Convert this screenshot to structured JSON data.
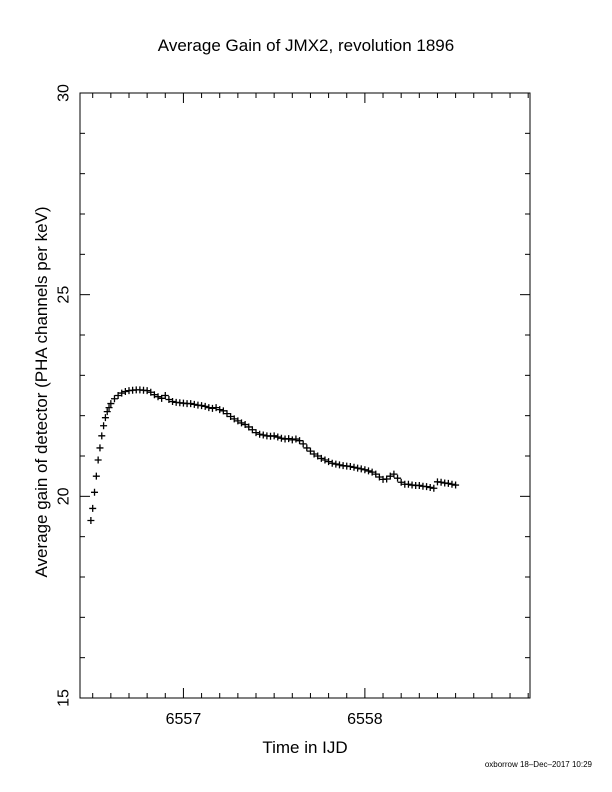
{
  "chart_data": {
    "type": "scatter",
    "title": "Average Gain of JMX2, revolution 1896",
    "xlabel": "Time in IJD",
    "ylabel": "Average gain of detector (PHA channels per keV)",
    "xlim": [
      6556.43,
      6558.91
    ],
    "ylim": [
      15,
      30
    ],
    "xticks": [
      6557,
      6558
    ],
    "yticks": [
      15,
      20,
      25,
      30
    ],
    "xminor_step": 0.1,
    "yminor_step": 1,
    "marker": "plus",
    "marker_color": "#000000",
    "grid": false,
    "series": [
      {
        "points": [
          [
            6556.49,
            19.4
          ],
          [
            6556.5,
            19.7
          ],
          [
            6556.51,
            20.1
          ],
          [
            6556.52,
            20.5
          ],
          [
            6556.53,
            20.9
          ],
          [
            6556.54,
            21.2
          ],
          [
            6556.55,
            21.5
          ],
          [
            6556.56,
            21.75
          ],
          [
            6556.57,
            21.95
          ],
          [
            6556.58,
            22.1
          ],
          [
            6556.59,
            22.2
          ],
          [
            6556.6,
            22.3
          ],
          [
            6556.62,
            22.42
          ],
          [
            6556.64,
            22.5
          ],
          [
            6556.66,
            22.56
          ],
          [
            6556.68,
            22.6
          ],
          [
            6556.7,
            22.62
          ],
          [
            6556.72,
            22.63
          ],
          [
            6556.74,
            22.64
          ],
          [
            6556.76,
            22.64
          ],
          [
            6556.78,
            22.63
          ],
          [
            6556.8,
            22.62
          ],
          [
            6556.82,
            22.58
          ],
          [
            6556.84,
            22.52
          ],
          [
            6556.86,
            22.47
          ],
          [
            6556.88,
            22.43
          ],
          [
            6556.9,
            22.5
          ],
          [
            6556.92,
            22.4
          ],
          [
            6556.94,
            22.35
          ],
          [
            6556.96,
            22.33
          ],
          [
            6556.98,
            22.32
          ],
          [
            6557.0,
            22.31
          ],
          [
            6557.02,
            22.3
          ],
          [
            6557.04,
            22.3
          ],
          [
            6557.06,
            22.28
          ],
          [
            6557.08,
            22.26
          ],
          [
            6557.1,
            22.25
          ],
          [
            6557.12,
            22.23
          ],
          [
            6557.14,
            22.2
          ],
          [
            6557.16,
            22.18
          ],
          [
            6557.18,
            22.2
          ],
          [
            6557.2,
            22.15
          ],
          [
            6557.22,
            22.12
          ],
          [
            6557.24,
            22.05
          ],
          [
            6557.26,
            21.98
          ],
          [
            6557.28,
            21.92
          ],
          [
            6557.3,
            21.87
          ],
          [
            6557.32,
            21.82
          ],
          [
            6557.34,
            21.78
          ],
          [
            6557.36,
            21.72
          ],
          [
            6557.38,
            21.65
          ],
          [
            6557.4,
            21.58
          ],
          [
            6557.42,
            21.54
          ],
          [
            6557.44,
            21.52
          ],
          [
            6557.46,
            21.5
          ],
          [
            6557.48,
            21.49
          ],
          [
            6557.5,
            21.5
          ],
          [
            6557.52,
            21.47
          ],
          [
            6557.54,
            21.44
          ],
          [
            6557.56,
            21.42
          ],
          [
            6557.58,
            21.43
          ],
          [
            6557.6,
            21.4
          ],
          [
            6557.62,
            21.42
          ],
          [
            6557.64,
            21.38
          ],
          [
            6557.66,
            21.3
          ],
          [
            6557.68,
            21.2
          ],
          [
            6557.7,
            21.12
          ],
          [
            6557.72,
            21.05
          ],
          [
            6557.74,
            21.0
          ],
          [
            6557.76,
            20.94
          ],
          [
            6557.78,
            20.9
          ],
          [
            6557.8,
            20.86
          ],
          [
            6557.82,
            20.82
          ],
          [
            6557.84,
            20.8
          ],
          [
            6557.86,
            20.78
          ],
          [
            6557.88,
            20.76
          ],
          [
            6557.9,
            20.75
          ],
          [
            6557.92,
            20.74
          ],
          [
            6557.94,
            20.72
          ],
          [
            6557.96,
            20.7
          ],
          [
            6557.98,
            20.68
          ],
          [
            6558.0,
            20.66
          ],
          [
            6558.02,
            20.63
          ],
          [
            6558.04,
            20.6
          ],
          [
            6558.06,
            20.55
          ],
          [
            6558.08,
            20.48
          ],
          [
            6558.1,
            20.42
          ],
          [
            6558.12,
            20.43
          ],
          [
            6558.14,
            20.5
          ],
          [
            6558.16,
            20.55
          ],
          [
            6558.18,
            20.45
          ],
          [
            6558.2,
            20.35
          ],
          [
            6558.22,
            20.3
          ],
          [
            6558.24,
            20.3
          ],
          [
            6558.26,
            20.28
          ],
          [
            6558.28,
            20.27
          ],
          [
            6558.3,
            20.27
          ],
          [
            6558.32,
            20.25
          ],
          [
            6558.34,
            20.24
          ],
          [
            6558.36,
            20.22
          ],
          [
            6558.38,
            20.2
          ],
          [
            6558.4,
            20.36
          ],
          [
            6558.42,
            20.35
          ],
          [
            6558.44,
            20.33
          ],
          [
            6558.46,
            20.32
          ],
          [
            6558.48,
            20.3
          ],
          [
            6558.5,
            20.28
          ]
        ]
      }
    ]
  },
  "footer_text": "oxborrow 18–Dec–2017 10:29"
}
